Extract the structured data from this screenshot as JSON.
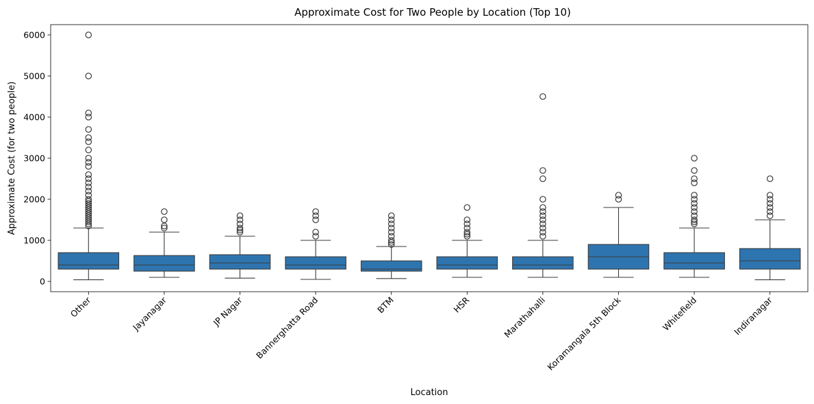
{
  "chart_data": {
    "type": "box",
    "title": "Approximate Cost for Two People by Location (Top 10)",
    "xlabel": "Location",
    "ylabel": "Approximate Cost (for two people)",
    "ylim": [
      -250,
      6250
    ],
    "yticks": [
      0,
      1000,
      2000,
      3000,
      4000,
      5000,
      6000
    ],
    "grid": false,
    "legend": "none",
    "box_color": "#2e75b0",
    "line_color": "#3a3a3a",
    "categories": [
      "Other",
      "Jayanagar",
      "JP Nagar",
      "Bannerghatta Road",
      "BTM",
      "HSR",
      "Marathahalli",
      "Koramangala 5th Block",
      "Whitefield",
      "Indiranagar"
    ],
    "boxes": [
      {
        "min": 40,
        "q1": 300,
        "median": 400,
        "q3": 700,
        "max": 1300,
        "outliers": [
          1350,
          1400,
          1450,
          1500,
          1550,
          1600,
          1650,
          1700,
          1750,
          1800,
          1850,
          1900,
          1950,
          2000,
          2100,
          2200,
          2300,
          2400,
          2500,
          2600,
          2800,
          2900,
          3000,
          3200,
          3400,
          3500,
          3700,
          4000,
          4100,
          5000,
          6000
        ]
      },
      {
        "min": 100,
        "q1": 250,
        "median": 400,
        "q3": 630,
        "max": 1200,
        "outliers": [
          1300,
          1350,
          1500,
          1700
        ]
      },
      {
        "min": 80,
        "q1": 300,
        "median": 450,
        "q3": 650,
        "max": 1100,
        "outliers": [
          1200,
          1250,
          1300,
          1400,
          1500,
          1600
        ]
      },
      {
        "min": 50,
        "q1": 300,
        "median": 400,
        "q3": 600,
        "max": 1000,
        "outliers": [
          1100,
          1200,
          1500,
          1600,
          1700
        ]
      },
      {
        "min": 70,
        "q1": 250,
        "median": 300,
        "q3": 500,
        "max": 850,
        "outliers": [
          900,
          950,
          1000,
          1100,
          1200,
          1300,
          1400,
          1500,
          1600
        ]
      },
      {
        "min": 100,
        "q1": 300,
        "median": 400,
        "q3": 600,
        "max": 1000,
        "outliers": [
          1100,
          1150,
          1200,
          1300,
          1400,
          1500,
          1800
        ]
      },
      {
        "min": 100,
        "q1": 300,
        "median": 400,
        "q3": 600,
        "max": 1000,
        "outliers": [
          1100,
          1200,
          1300,
          1400,
          1500,
          1600,
          1700,
          1800,
          2000,
          2500,
          2700,
          4500
        ]
      },
      {
        "min": 100,
        "q1": 300,
        "median": 600,
        "q3": 900,
        "max": 1800,
        "outliers": [
          2000,
          2100
        ]
      },
      {
        "min": 100,
        "q1": 300,
        "median": 450,
        "q3": 700,
        "max": 1300,
        "outliers": [
          1400,
          1450,
          1500,
          1600,
          1700,
          1800,
          1900,
          2000,
          2100,
          2400,
          2500,
          2700,
          3000
        ]
      },
      {
        "min": 40,
        "q1": 300,
        "median": 500,
        "q3": 800,
        "max": 1500,
        "outliers": [
          1600,
          1700,
          1800,
          1900,
          2000,
          2100,
          2500
        ]
      }
    ]
  }
}
